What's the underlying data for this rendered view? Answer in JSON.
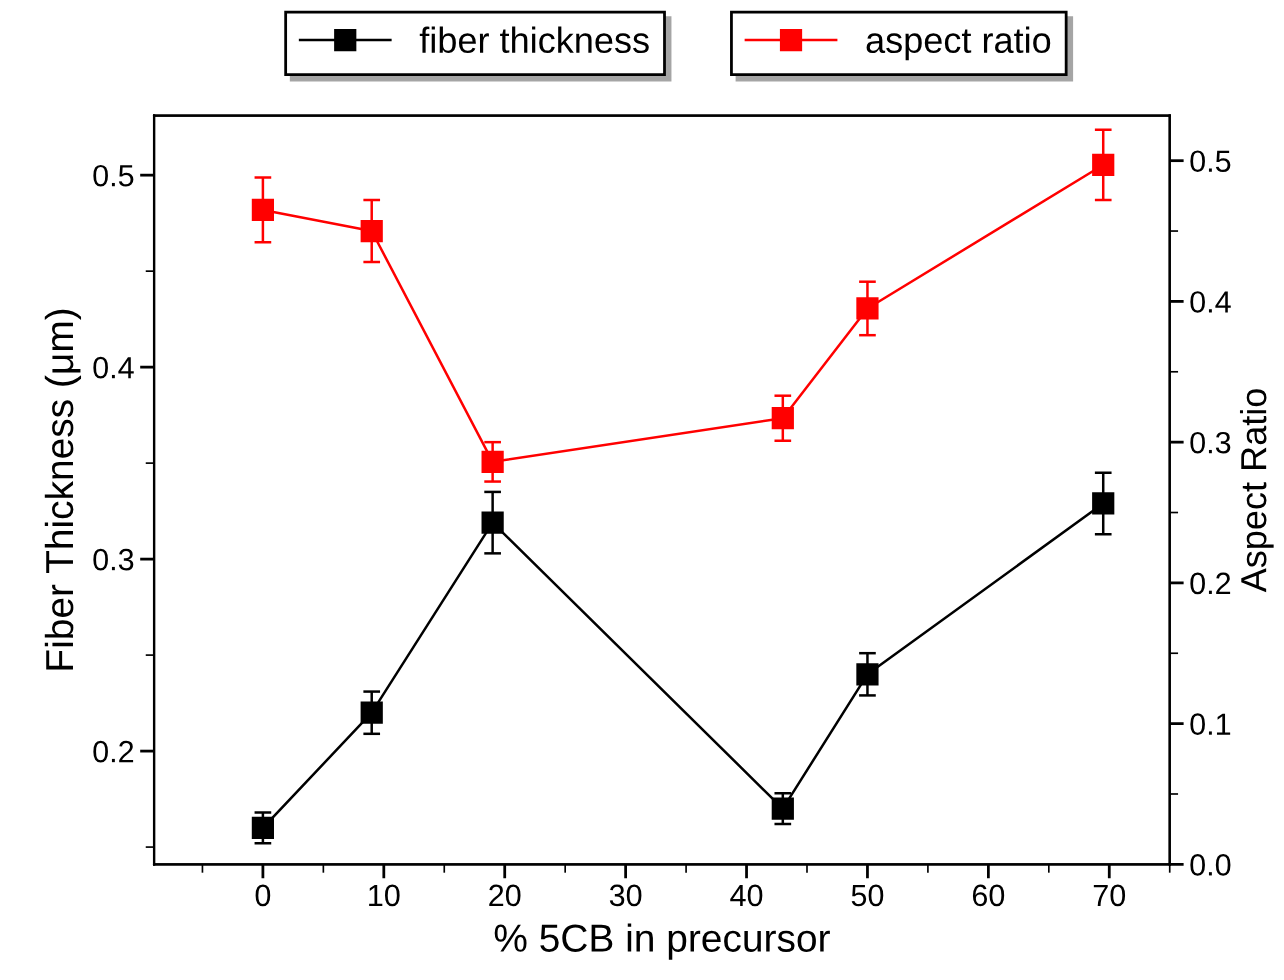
{
  "chart_data": {
    "type": "line",
    "xlabel": "% 5CB in precursor",
    "ylabel": "Fiber Thickness (μm)",
    "y2label": "Aspect Ratio",
    "x": [
      0,
      9,
      19,
      43,
      50,
      69.5
    ],
    "series": [
      {
        "name": "fiber thickness",
        "color": "#000000",
        "values": [
          0.16,
          0.22,
          0.319,
          0.17,
          0.24,
          0.329
        ],
        "errors": [
          0.008,
          0.011,
          0.016,
          0.008,
          0.011,
          0.016
        ]
      },
      {
        "name": "aspect ratio",
        "color": "#ff0000",
        "axis": "y2",
        "values": [
          0.465,
          0.45,
          0.286,
          0.317,
          0.395,
          0.497
        ],
        "errors": [
          0.023,
          0.022,
          0.014,
          0.016,
          0.019,
          0.025
        ]
      }
    ],
    "xlim": [
      -9,
      75
    ],
    "xticks": [
      0,
      10,
      20,
      30,
      40,
      50,
      60,
      70
    ],
    "ylim": [
      0.141,
      0.531
    ],
    "yticks": [
      0.2,
      0.3,
      0.4,
      0.5
    ],
    "y2lim": [
      0,
      0.532
    ],
    "y2ticks": [
      {
        "value": 0,
        "label": "0.0"
      },
      0.1,
      0.2,
      0.3,
      0.4,
      0.5
    ],
    "marker": "square",
    "line_style": "solid",
    "grid": false,
    "legend": "top"
  }
}
